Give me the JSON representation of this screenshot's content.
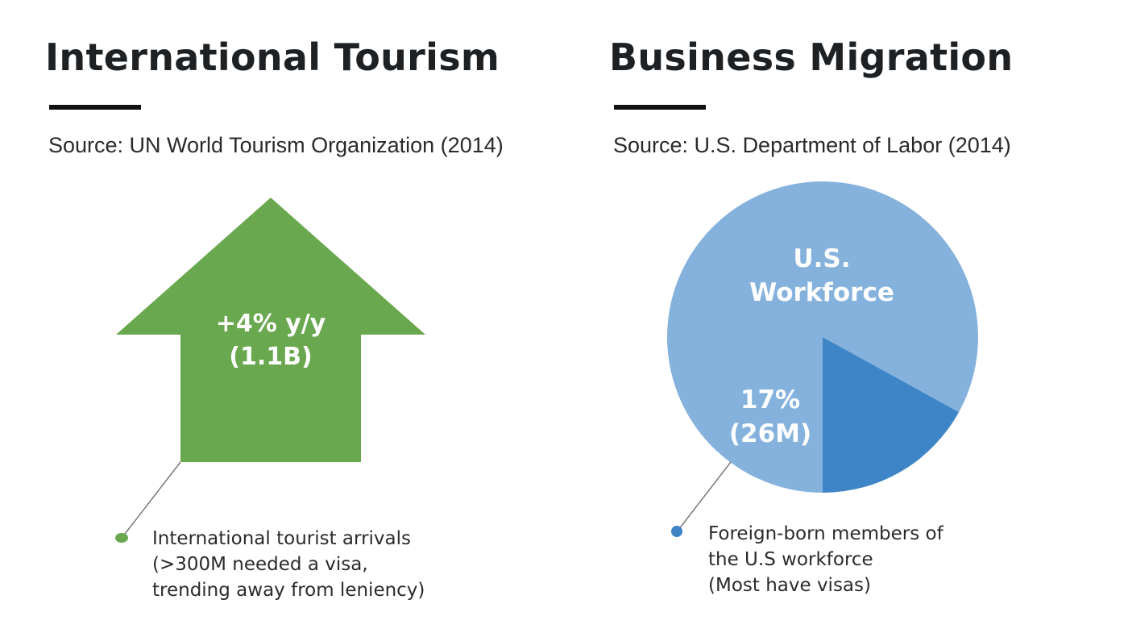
{
  "tourism": {
    "title": "International Tourism",
    "source": "Source: UN World Tourism Organization (2014)",
    "arrow_line1": "+4% y/y",
    "arrow_line2": "(1.1B)",
    "callout_lines": [
      "International tourist arrivals",
      "(>300M needed a visa,",
      "trending away from leniency)"
    ],
    "arrow_color": "#6aa84f",
    "dot_color": "#6aa84f"
  },
  "migration": {
    "title": "Business Migration",
    "source": "Source: U.S. Department of Labor (2014)",
    "pie_label_line1": "U.S.",
    "pie_label_line2": "Workforce",
    "slice_label_line1": "17%",
    "slice_label_line2": "(26M)",
    "callout_lines": [
      "Foreign-born members of",
      "the U.S workforce",
      "(Most have visas)"
    ],
    "dot_color": "#3d85c6"
  },
  "chart_data": [
    {
      "type": "bar",
      "title": "International Tourism",
      "categories": [
        "International tourist arrivals"
      ],
      "values": [
        4
      ],
      "value_label": "+4% y/y",
      "total_label": "(1.1B)",
      "colors": [
        "#6aa84f"
      ]
    },
    {
      "type": "pie",
      "title": "Business Migration",
      "slices": [
        {
          "label": "U.S. Workforce",
          "value": 83,
          "color": "#85b2dd"
        },
        {
          "label": "17% (26M)",
          "value": 17,
          "color": "#3d85c6"
        }
      ]
    }
  ]
}
